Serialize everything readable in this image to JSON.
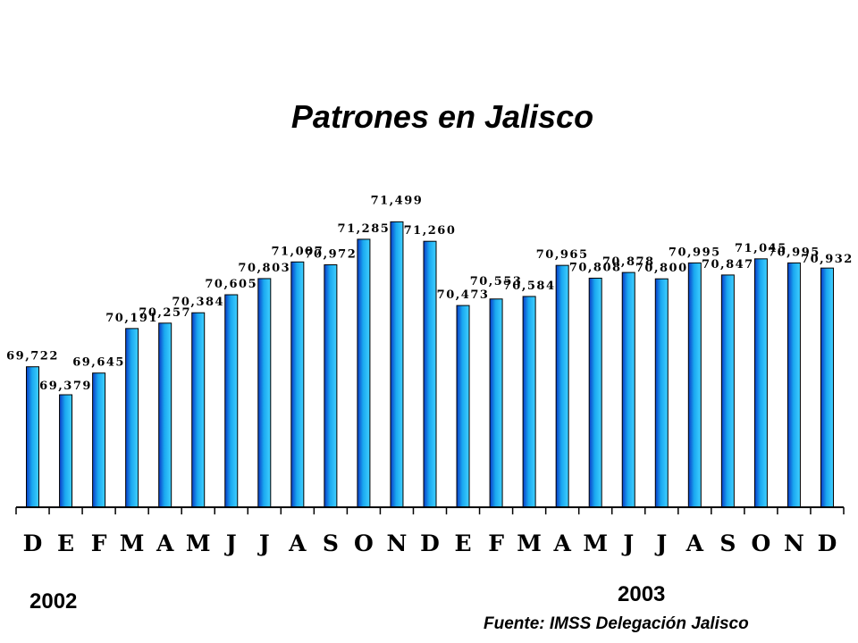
{
  "chart_data": {
    "type": "bar",
    "title": "Patrones en Jalisco",
    "categories": [
      "D",
      "E",
      "F",
      "M",
      "A",
      "M",
      "J",
      "J",
      "A",
      "S",
      "O",
      "N",
      "D",
      "E",
      "F",
      "M",
      "A",
      "M",
      "J",
      "J",
      "A",
      "S",
      "O",
      "N",
      "D"
    ],
    "values": [
      69722,
      69379,
      69645,
      70191,
      70257,
      70384,
      70605,
      70803,
      71007,
      70972,
      71285,
      71499,
      71260,
      70473,
      70553,
      70584,
      70965,
      70808,
      70878,
      70800,
      70995,
      70847,
      71045,
      70995,
      70932
    ],
    "value_labels": [
      "69,722",
      "69,379",
      "69,645",
      "70,191",
      "70,257",
      "70,384",
      "70,605",
      "70,803",
      "71,007",
      "70,972",
      "71,285",
      "71,499",
      "71,260",
      "70,473",
      "70,553",
      "70,584",
      "70,965",
      "70,808",
      "70,878",
      "70,800",
      "70,995",
      "70,847",
      "71,045",
      "70,995",
      "70,932"
    ],
    "ylim": [
      68000,
      71700
    ],
    "grid": false,
    "legend": "none",
    "colors": {
      "bar_dark": "#0a3cc8",
      "bar_mid": "#1aa8f0",
      "bar_light": "#40d0ff",
      "axis": "#000000"
    }
  },
  "year_labels": {
    "first": "2002",
    "second": "2003"
  },
  "source": "Fuente: IMSS Delegación Jalisco"
}
